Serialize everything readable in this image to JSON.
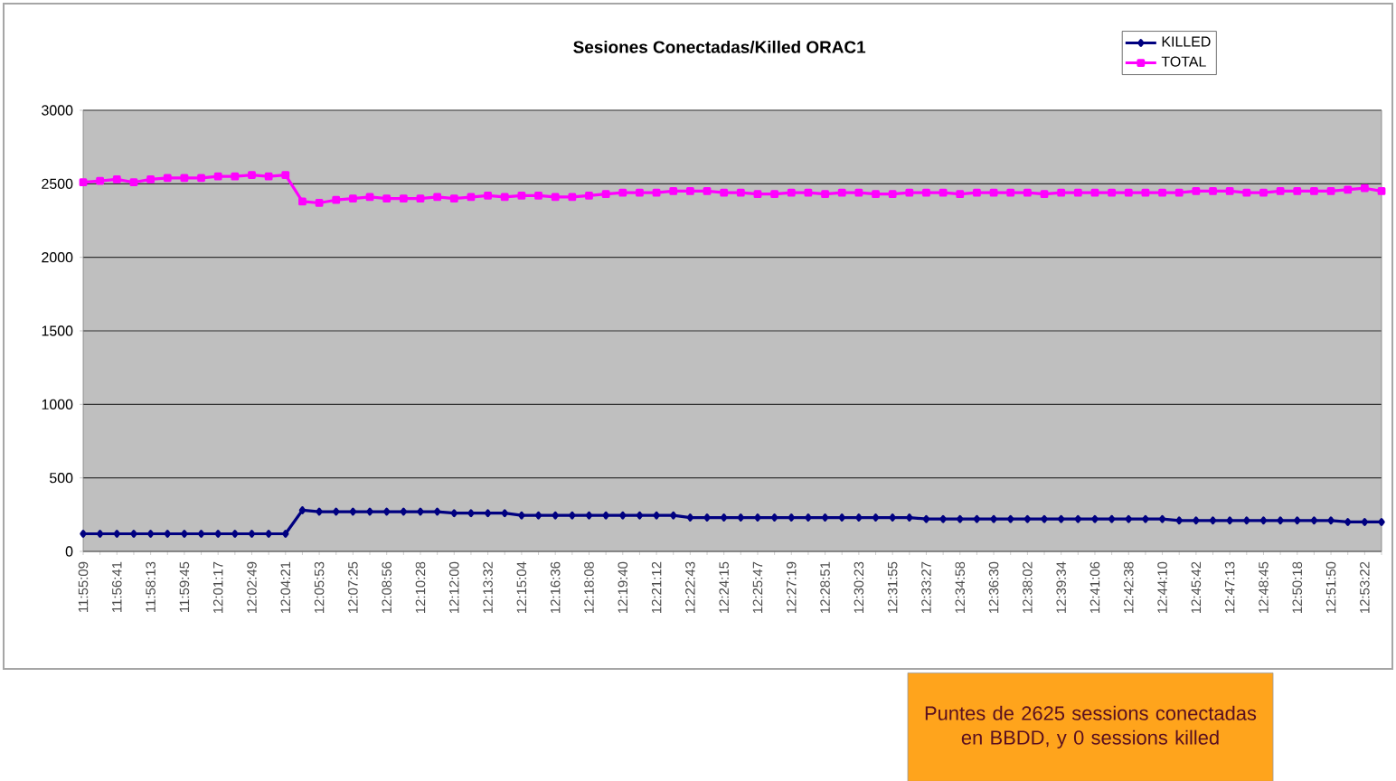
{
  "chart_data": {
    "type": "line",
    "title": "Sesiones Conectadas/Killed ORAC1",
    "categories": [
      "11:55:09",
      null,
      "11:56:41",
      null,
      "11:58:13",
      null,
      "11:59:45",
      null,
      "12:01:17",
      null,
      "12:02:49",
      null,
      "12:04:21",
      null,
      "12:05:53",
      null,
      "12:07:25",
      null,
      "12:08:56",
      null,
      "12:10:28",
      null,
      "12:12:00",
      null,
      "12:13:32",
      null,
      "12:15:04",
      null,
      "12:16:36",
      null,
      "12:18:08",
      null,
      "12:19:40",
      null,
      "12:21:12",
      null,
      "12:22:43",
      null,
      "12:24:15",
      null,
      "12:25:47",
      null,
      "12:27:19",
      null,
      "12:28:51",
      null,
      "12:30:23",
      null,
      "12:31:55",
      null,
      "12:33:27",
      null,
      "12:34:58",
      null,
      "12:36:30",
      null,
      "12:38:02",
      null,
      "12:39:34",
      null,
      "12:41:06",
      null,
      "12:42:38",
      null,
      "12:44:10",
      null,
      "12:45:42",
      null,
      "12:47:13",
      null,
      "12:48:45",
      null,
      "12:50:18",
      null,
      "12:51:50",
      null,
      "12:53:22",
      null
    ],
    "series": [
      {
        "name": "KILLED",
        "color": "#000080",
        "marker": "diamond",
        "values": [
          120,
          120,
          120,
          120,
          120,
          120,
          120,
          120,
          120,
          120,
          120,
          120,
          120,
          280,
          270,
          270,
          270,
          270,
          270,
          270,
          270,
          270,
          260,
          260,
          260,
          260,
          245,
          245,
          245,
          245,
          245,
          245,
          245,
          245,
          245,
          245,
          230,
          230,
          230,
          230,
          230,
          230,
          230,
          230,
          230,
          230,
          230,
          230,
          230,
          230,
          220,
          220,
          220,
          220,
          220,
          220,
          220,
          220,
          220,
          220,
          220,
          220,
          220,
          220,
          220,
          210,
          210,
          210,
          210,
          210,
          210,
          210,
          210,
          210,
          210,
          200,
          200,
          200
        ]
      },
      {
        "name": "TOTAL",
        "color": "#ff00ff",
        "marker": "square",
        "values": [
          2510,
          2520,
          2530,
          2510,
          2530,
          2540,
          2540,
          2540,
          2550,
          2550,
          2560,
          2550,
          2560,
          2380,
          2370,
          2390,
          2400,
          2410,
          2400,
          2400,
          2400,
          2410,
          2400,
          2410,
          2420,
          2410,
          2420,
          2420,
          2410,
          2410,
          2420,
          2430,
          2440,
          2440,
          2440,
          2450,
          2450,
          2450,
          2440,
          2440,
          2430,
          2430,
          2440,
          2440,
          2430,
          2440,
          2440,
          2430,
          2430,
          2440,
          2440,
          2440,
          2430,
          2440,
          2440,
          2440,
          2440,
          2430,
          2440,
          2440,
          2440,
          2440,
          2440,
          2440,
          2440,
          2440,
          2450,
          2450,
          2450,
          2440,
          2440,
          2450,
          2450,
          2450,
          2450,
          2460,
          2470,
          2450
        ]
      }
    ],
    "ylim": [
      0,
      3000
    ],
    "yticks": [
      0,
      500,
      1000,
      1500,
      2000,
      2500,
      3000
    ],
    "grid": "y",
    "legend": "top right",
    "annotations": [
      "Puntes de 2625 sessions conectadas en BBDD, y 0 sessions killed"
    ]
  }
}
